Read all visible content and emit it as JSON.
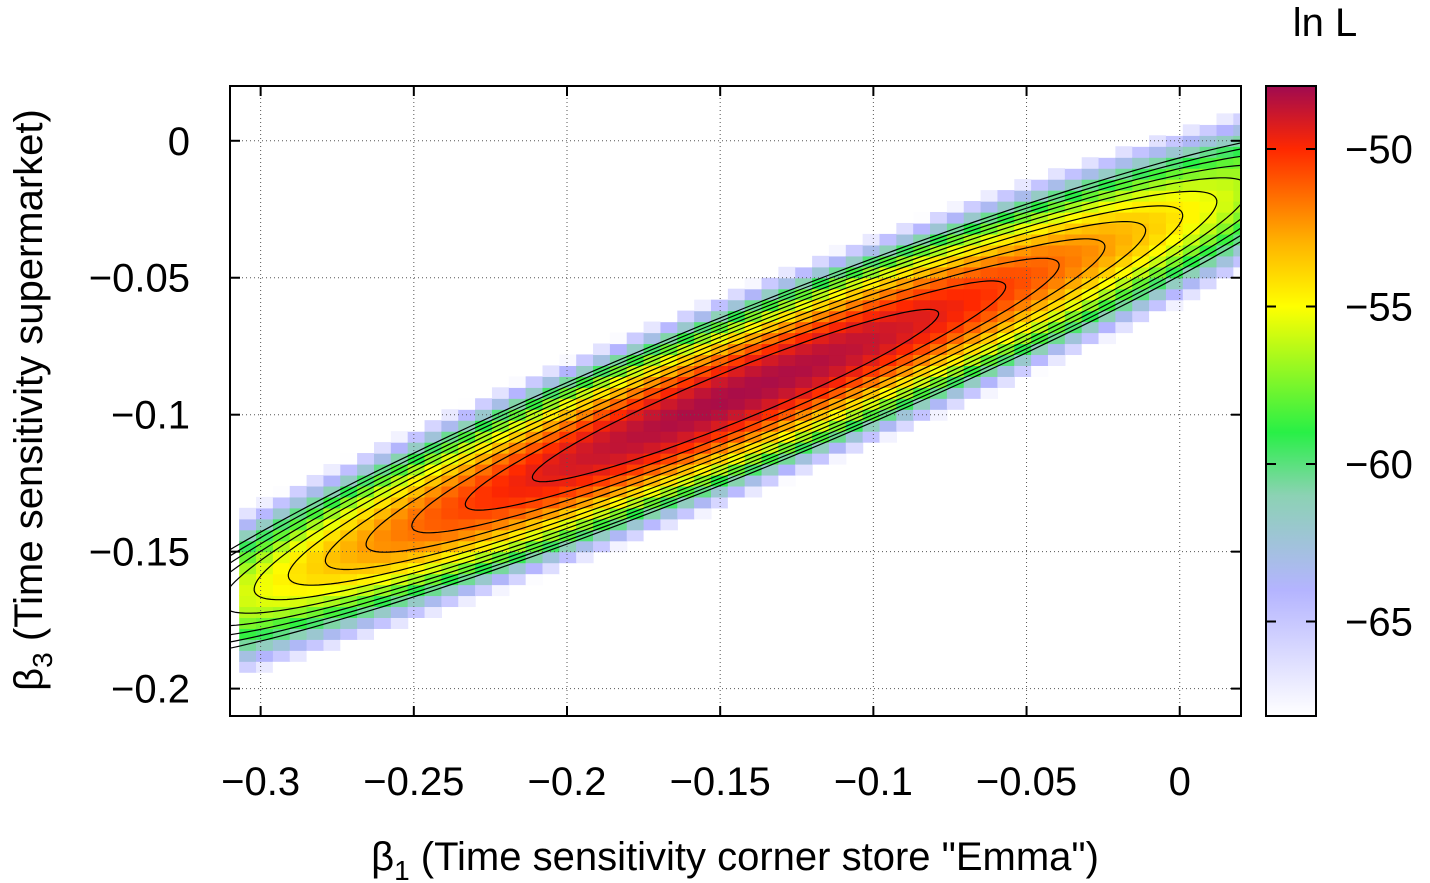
{
  "chart_data": {
    "type": "heatmap",
    "title": "",
    "xlabel": {
      "symbol": "β",
      "subscript": "1",
      "text": " (Time sensitivity corner store \"Emma\")"
    },
    "ylabel": {
      "symbol": "β",
      "subscript": "3",
      "text": " (Time sensitivity supermarket)"
    },
    "colorbar_label": "ln L",
    "xlim": [
      -0.31,
      0.02
    ],
    "ylim": [
      -0.21,
      0.02
    ],
    "x_ticks": [
      -0.3,
      -0.25,
      -0.2,
      -0.15,
      -0.1,
      -0.05,
      0
    ],
    "x_tick_labels": [
      "−0.3",
      "−0.25",
      "−0.2",
      "−0.15",
      "−0.1",
      "−0.05",
      "0"
    ],
    "y_ticks": [
      0,
      -0.05,
      -0.1,
      -0.15,
      -0.2
    ],
    "y_tick_labels": [
      "0",
      "−0.05",
      "−0.1",
      "−0.15",
      "−0.2"
    ],
    "grid": true,
    "colorbar_range": [
      -68,
      -48
    ],
    "colorbar_ticks": [
      -50,
      -55,
      -60,
      -65
    ],
    "colorbar_tick_labels": [
      "−50",
      "−55",
      "−60",
      "−65"
    ],
    "colormap_stops": [
      {
        "value": -68,
        "color": "#ffffff"
      },
      {
        "value": -64,
        "color": "#b4b4ff"
      },
      {
        "value": -61,
        "color": "#8cd2b4"
      },
      {
        "value": -59,
        "color": "#28f046"
      },
      {
        "value": -55,
        "color": "#ffff00"
      },
      {
        "value": -53,
        "color": "#ffb400"
      },
      {
        "value": -50,
        "color": "#ff2800"
      },
      {
        "value": -48,
        "color": "#a00a50"
      }
    ],
    "peak": {
      "b1": -0.145,
      "b3": -0.093,
      "lnL": -48.2
    },
    "contour_levels": [
      -49.5,
      -50.5,
      -51.5,
      -52.5,
      -53.5,
      -54.5,
      -55.5,
      -56.5,
      -57.5,
      -58.5,
      -59.5,
      -60.5
    ]
  }
}
